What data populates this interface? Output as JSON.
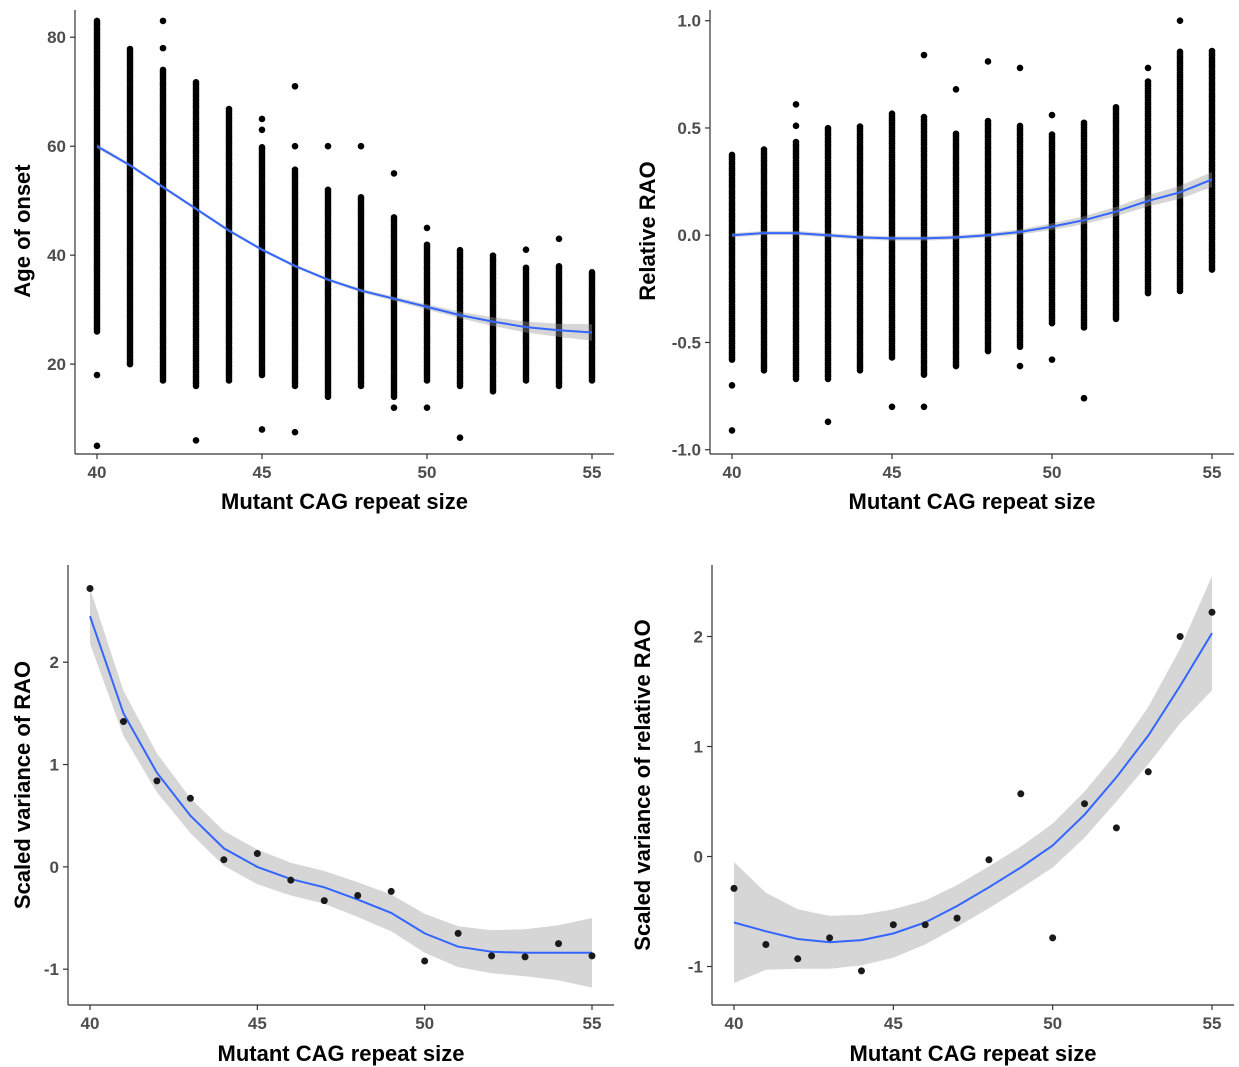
{
  "colors": {
    "points": "#000000",
    "points_small": "#1a1a1a",
    "fit_line": "#3366ff",
    "band": "#999999",
    "axis": "#333333",
    "tick_text": "#4d4d4d"
  },
  "chart_data": [
    {
      "type": "scatter",
      "xlabel": "Mutant CAG repeat size",
      "ylabel": "Age of onset",
      "xlim": [
        40,
        55
      ],
      "ylim": [
        3.5,
        85
      ],
      "xticks": [
        40,
        45,
        50,
        55
      ],
      "yticks": [
        20,
        40,
        60,
        80
      ],
      "columns": [
        {
          "x": 40,
          "lo": 26,
          "hi": 83,
          "out": [
            5,
            18
          ]
        },
        {
          "x": 41,
          "lo": 20,
          "hi": 78,
          "out": []
        },
        {
          "x": 42,
          "lo": 17,
          "hi": 74,
          "out": [
            83,
            78
          ]
        },
        {
          "x": 43,
          "lo": 16,
          "hi": 72,
          "out": [
            6
          ]
        },
        {
          "x": 44,
          "lo": 17,
          "hi": 67,
          "out": []
        },
        {
          "x": 45,
          "lo": 18,
          "hi": 60,
          "out": [
            8,
            65,
            63
          ]
        },
        {
          "x": 46,
          "lo": 16,
          "hi": 56,
          "out": [
            7.5,
            71,
            60
          ]
        },
        {
          "x": 47,
          "lo": 14,
          "hi": 52,
          "out": [
            60
          ]
        },
        {
          "x": 48,
          "lo": 16,
          "hi": 51,
          "out": [
            60
          ]
        },
        {
          "x": 49,
          "lo": 14,
          "hi": 47,
          "out": [
            12,
            55
          ]
        },
        {
          "x": 50,
          "lo": 17,
          "hi": 42,
          "out": [
            12,
            45
          ]
        },
        {
          "x": 51,
          "lo": 16,
          "hi": 41,
          "out": [
            6.5
          ]
        },
        {
          "x": 52,
          "lo": 15,
          "hi": 40,
          "out": []
        },
        {
          "x": 53,
          "lo": 17,
          "hi": 38,
          "out": [
            41
          ]
        },
        {
          "x": 54,
          "lo": 16,
          "hi": 38,
          "out": [
            43
          ]
        },
        {
          "x": 55,
          "lo": 17,
          "hi": 37,
          "out": []
        }
      ],
      "fit": {
        "x": [
          40,
          41,
          42,
          43,
          44,
          45,
          46,
          47,
          48,
          49,
          50,
          51,
          52,
          53,
          54,
          55
        ],
        "y": [
          60,
          56.5,
          52.5,
          48.5,
          44.5,
          41,
          38,
          35.5,
          33.5,
          32,
          30.5,
          29,
          27.8,
          26.8,
          26.2,
          25.8
        ],
        "se": [
          0.4,
          0.3,
          0.3,
          0.3,
          0.3,
          0.3,
          0.3,
          0.3,
          0.35,
          0.4,
          0.5,
          0.6,
          0.8,
          1.0,
          1.2,
          1.5
        ]
      }
    },
    {
      "type": "scatter",
      "xlabel": "Mutant CAG repeat size",
      "ylabel": "Relative RAO",
      "xlim": [
        40,
        55
      ],
      "ylim": [
        -1.02,
        1.05
      ],
      "xticks": [
        40,
        45,
        50,
        55
      ],
      "yticks": [
        -1.0,
        -0.5,
        0.0,
        0.5,
        1.0
      ],
      "ytick_labels": [
        "-1.0",
        "-0.5",
        "0.0",
        "0.5",
        "1.0"
      ],
      "columns": [
        {
          "x": 40,
          "lo": -0.58,
          "hi": 0.38,
          "out": [
            -0.91,
            -0.7
          ]
        },
        {
          "x": 41,
          "lo": -0.63,
          "hi": 0.4,
          "out": []
        },
        {
          "x": 42,
          "lo": -0.67,
          "hi": 0.44,
          "out": [
            0.61,
            0.51
          ]
        },
        {
          "x": 43,
          "lo": -0.67,
          "hi": 0.5,
          "out": [
            -0.87
          ]
        },
        {
          "x": 44,
          "lo": -0.63,
          "hi": 0.51,
          "out": []
        },
        {
          "x": 45,
          "lo": -0.57,
          "hi": 0.57,
          "out": [
            -0.8
          ]
        },
        {
          "x": 46,
          "lo": -0.65,
          "hi": 0.56,
          "out": [
            -0.8,
            0.84
          ]
        },
        {
          "x": 47,
          "lo": -0.61,
          "hi": 0.48,
          "out": [
            0.68
          ]
        },
        {
          "x": 48,
          "lo": -0.54,
          "hi": 0.54,
          "out": [
            0.81
          ]
        },
        {
          "x": 49,
          "lo": -0.52,
          "hi": 0.52,
          "out": [
            -0.61,
            0.78
          ]
        },
        {
          "x": 50,
          "lo": -0.41,
          "hi": 0.47,
          "out": [
            -0.58,
            0.56
          ]
        },
        {
          "x": 51,
          "lo": -0.43,
          "hi": 0.53,
          "out": [
            -0.76
          ]
        },
        {
          "x": 52,
          "lo": -0.39,
          "hi": 0.6,
          "out": []
        },
        {
          "x": 53,
          "lo": -0.27,
          "hi": 0.72,
          "out": [
            0.78
          ]
        },
        {
          "x": 54,
          "lo": -0.26,
          "hi": 0.86,
          "out": [
            1.0
          ]
        },
        {
          "x": 55,
          "lo": -0.16,
          "hi": 0.86,
          "out": []
        }
      ],
      "fit": {
        "x": [
          40,
          41,
          42,
          43,
          44,
          45,
          46,
          47,
          48,
          49,
          50,
          51,
          52,
          53,
          54,
          55
        ],
        "y": [
          0.0,
          0.01,
          0.01,
          0.0,
          -0.01,
          -0.015,
          -0.015,
          -0.01,
          0.0,
          0.015,
          0.04,
          0.07,
          0.11,
          0.16,
          0.2,
          0.26
        ],
        "se": [
          0.01,
          0.01,
          0.01,
          0.01,
          0.01,
          0.01,
          0.01,
          0.01,
          0.01,
          0.012,
          0.015,
          0.018,
          0.022,
          0.026,
          0.03,
          0.035
        ]
      }
    },
    {
      "type": "scatter",
      "xlabel": "Mutant CAG repeat size",
      "ylabel": "Scaled variance of RAO",
      "xlim": [
        40,
        55
      ],
      "ylim": [
        -1.35,
        2.95
      ],
      "xticks": [
        40,
        45,
        50,
        55
      ],
      "yticks": [
        -1,
        0,
        1,
        2
      ],
      "points": {
        "x": [
          40,
          41,
          42,
          43,
          44,
          45,
          46,
          47,
          48,
          49,
          50,
          51,
          52,
          53,
          54,
          55
        ],
        "y": [
          2.72,
          1.42,
          0.84,
          0.67,
          0.07,
          0.13,
          -0.13,
          -0.33,
          -0.28,
          -0.24,
          -0.92,
          -0.65,
          -0.87,
          -0.88,
          -0.75,
          -0.87
        ]
      },
      "fit": {
        "x": [
          40,
          41,
          42,
          43,
          44,
          45,
          46,
          47,
          48,
          49,
          50,
          51,
          52,
          53,
          54,
          55
        ],
        "y": [
          2.45,
          1.5,
          0.92,
          0.5,
          0.18,
          0.0,
          -0.12,
          -0.2,
          -0.32,
          -0.45,
          -0.65,
          -0.78,
          -0.83,
          -0.84,
          -0.84,
          -0.84
        ],
        "se": [
          0.27,
          0.22,
          0.19,
          0.17,
          0.17,
          0.17,
          0.16,
          0.16,
          0.17,
          0.18,
          0.19,
          0.2,
          0.21,
          0.23,
          0.27,
          0.34
        ]
      }
    },
    {
      "type": "scatter",
      "xlabel": "Mutant CAG repeat size",
      "ylabel": "Scaled variance of relative RAO",
      "xlim": [
        40,
        55
      ],
      "ylim": [
        -1.35,
        2.65
      ],
      "xticks": [
        40,
        45,
        50,
        55
      ],
      "yticks": [
        -1,
        0,
        1,
        2
      ],
      "points": {
        "x": [
          40,
          41,
          42,
          43,
          44,
          45,
          46,
          47,
          48,
          49,
          50,
          51,
          52,
          53,
          54,
          55
        ],
        "y": [
          -0.29,
          -0.8,
          -0.93,
          -0.74,
          -1.04,
          -0.62,
          -0.62,
          -0.56,
          -0.03,
          0.57,
          -0.74,
          0.48,
          0.26,
          0.77,
          2.0,
          2.22
        ]
      },
      "fit": {
        "x": [
          40,
          41,
          42,
          43,
          44,
          45,
          46,
          47,
          48,
          49,
          50,
          51,
          52,
          53,
          54,
          55
        ],
        "y": [
          -0.6,
          -0.68,
          -0.75,
          -0.78,
          -0.76,
          -0.7,
          -0.6,
          -0.45,
          -0.28,
          -0.1,
          0.1,
          0.38,
          0.72,
          1.1,
          1.55,
          2.03
        ],
        "se": [
          0.55,
          0.35,
          0.27,
          0.24,
          0.23,
          0.22,
          0.2,
          0.19,
          0.19,
          0.19,
          0.2,
          0.21,
          0.22,
          0.26,
          0.34,
          0.52
        ]
      }
    }
  ]
}
